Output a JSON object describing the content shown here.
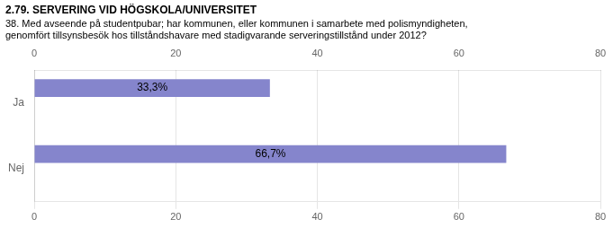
{
  "chart_data": {
    "type": "bar",
    "orientation": "horizontal",
    "title": "2.79. SERVERING VID HÖGSKOLA/UNIVERSITET",
    "subtitle": "38. Med avseende på studentpubar; har kommunen, eller kommunen i samarbete med polismyndigheten,\ngenomfört tillsynsbesök hos tillståndshavare med stadigvarande serveringstillstånd under 2012?",
    "categories": [
      "Nej",
      "Ja"
    ],
    "values": [
      66.7,
      33.3
    ],
    "value_labels": [
      "66,7%",
      "33,3%"
    ],
    "data_labels": true,
    "color": "#8585cc",
    "xlim": [
      0,
      80
    ],
    "xticks": [
      0,
      20,
      40,
      60,
      80
    ],
    "grid": true
  }
}
